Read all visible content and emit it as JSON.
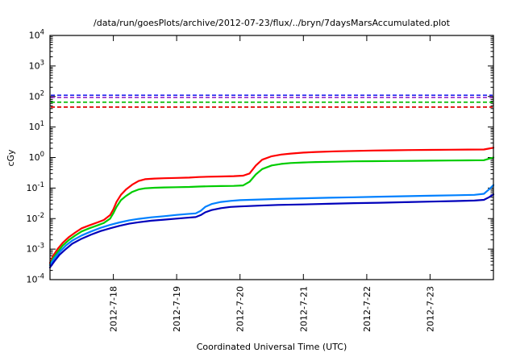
{
  "chart_data": {
    "type": "line",
    "title": "/data/run/goesPlots/archive/2012-07-23/flux/../bryn/7daysMarsAccumulated.plot",
    "xlabel": "Coordinated Universal Time (UTC)",
    "ylabel": "cGy",
    "axis_color": "#000000",
    "grid": false,
    "legend": "none",
    "y_axis": {
      "scale": "log",
      "min": 0.0001,
      "max": 10000,
      "tick_exponents": [
        4,
        3,
        2,
        1,
        0,
        -1,
        -2,
        -3,
        -4
      ]
    },
    "x_axis": {
      "range_days": [
        0,
        7
      ],
      "start_date": "2012-7-17",
      "ticks": [
        {
          "day": 1,
          "label": "2012-7-18"
        },
        {
          "day": 2,
          "label": "2012-7-19"
        },
        {
          "day": 3,
          "label": "2012-7-20"
        },
        {
          "day": 4,
          "label": "2012-7-21"
        },
        {
          "day": 5,
          "label": "2012-7-22"
        },
        {
          "day": 6,
          "label": "2012-7-23"
        }
      ]
    },
    "limit_lines": [
      {
        "name": "limit-blue",
        "color": "#2222ee",
        "value": 110,
        "style": "dashed"
      },
      {
        "name": "limit-purple",
        "color": "#9933cc",
        "value": 93,
        "style": "dashed"
      },
      {
        "name": "limit-green",
        "color": "#00bb00",
        "value": 65,
        "style": "dashed"
      },
      {
        "name": "limit-red",
        "color": "#dd0000",
        "value": 45,
        "style": "dashed"
      }
    ],
    "series": [
      {
        "name": "accumulated-dose-red",
        "color": "#ff0000",
        "points": [
          [
            0,
            0.00035
          ],
          [
            0.05,
            0.0006
          ],
          [
            0.12,
            0.001
          ],
          [
            0.2,
            0.0016
          ],
          [
            0.3,
            0.0025
          ],
          [
            0.4,
            0.0035
          ],
          [
            0.5,
            0.0048
          ],
          [
            0.62,
            0.006
          ],
          [
            0.75,
            0.0075
          ],
          [
            0.85,
            0.009
          ],
          [
            0.95,
            0.013
          ],
          [
            1.0,
            0.02
          ],
          [
            1.05,
            0.035
          ],
          [
            1.12,
            0.06
          ],
          [
            1.2,
            0.09
          ],
          [
            1.3,
            0.13
          ],
          [
            1.4,
            0.17
          ],
          [
            1.5,
            0.195
          ],
          [
            1.65,
            0.205
          ],
          [
            1.8,
            0.21
          ],
          [
            2.0,
            0.215
          ],
          [
            2.2,
            0.22
          ],
          [
            2.35,
            0.23
          ],
          [
            2.5,
            0.235
          ],
          [
            2.7,
            0.24
          ],
          [
            2.9,
            0.245
          ],
          [
            3.05,
            0.255
          ],
          [
            3.15,
            0.3
          ],
          [
            3.25,
            0.55
          ],
          [
            3.35,
            0.85
          ],
          [
            3.5,
            1.1
          ],
          [
            3.65,
            1.25
          ],
          [
            3.8,
            1.35
          ],
          [
            4.0,
            1.45
          ],
          [
            4.2,
            1.52
          ],
          [
            4.5,
            1.6
          ],
          [
            4.8,
            1.65
          ],
          [
            5.1,
            1.7
          ],
          [
            5.4,
            1.73
          ],
          [
            5.7,
            1.76
          ],
          [
            6.0,
            1.78
          ],
          [
            6.3,
            1.8
          ],
          [
            6.6,
            1.82
          ],
          [
            6.85,
            1.84
          ],
          [
            6.92,
            1.95
          ],
          [
            7,
            2.1
          ]
        ]
      },
      {
        "name": "accumulated-dose-green",
        "color": "#00cc00",
        "points": [
          [
            0,
            0.0003
          ],
          [
            0.05,
            0.0005
          ],
          [
            0.12,
            0.0008
          ],
          [
            0.2,
            0.0013
          ],
          [
            0.3,
            0.002
          ],
          [
            0.4,
            0.0028
          ],
          [
            0.5,
            0.0038
          ],
          [
            0.62,
            0.0048
          ],
          [
            0.75,
            0.006
          ],
          [
            0.85,
            0.0072
          ],
          [
            0.95,
            0.01
          ],
          [
            1.0,
            0.015
          ],
          [
            1.05,
            0.024
          ],
          [
            1.12,
            0.04
          ],
          [
            1.2,
            0.055
          ],
          [
            1.3,
            0.075
          ],
          [
            1.4,
            0.09
          ],
          [
            1.5,
            0.098
          ],
          [
            1.65,
            0.102
          ],
          [
            1.8,
            0.105
          ],
          [
            2.0,
            0.107
          ],
          [
            2.2,
            0.109
          ],
          [
            2.35,
            0.112
          ],
          [
            2.5,
            0.114
          ],
          [
            2.7,
            0.116
          ],
          [
            2.9,
            0.118
          ],
          [
            3.05,
            0.122
          ],
          [
            3.15,
            0.16
          ],
          [
            3.25,
            0.28
          ],
          [
            3.35,
            0.42
          ],
          [
            3.5,
            0.55
          ],
          [
            3.65,
            0.62
          ],
          [
            3.8,
            0.66
          ],
          [
            4.0,
            0.69
          ],
          [
            4.2,
            0.71
          ],
          [
            4.5,
            0.73
          ],
          [
            4.8,
            0.75
          ],
          [
            5.1,
            0.76
          ],
          [
            5.4,
            0.77
          ],
          [
            5.7,
            0.78
          ],
          [
            6.0,
            0.79
          ],
          [
            6.3,
            0.8
          ],
          [
            6.6,
            0.81
          ],
          [
            6.85,
            0.82
          ],
          [
            6.92,
            0.9
          ],
          [
            7,
            1.0
          ]
        ]
      },
      {
        "name": "accumulated-dose-lightblue",
        "color": "#0080ff",
        "points": [
          [
            0,
            0.0003
          ],
          [
            0.07,
            0.0005
          ],
          [
            0.15,
            0.0008
          ],
          [
            0.25,
            0.0013
          ],
          [
            0.35,
            0.0019
          ],
          [
            0.5,
            0.0028
          ],
          [
            0.65,
            0.0038
          ],
          [
            0.8,
            0.005
          ],
          [
            0.95,
            0.0062
          ],
          [
            1.1,
            0.0075
          ],
          [
            1.25,
            0.0088
          ],
          [
            1.4,
            0.0098
          ],
          [
            1.6,
            0.011
          ],
          [
            1.8,
            0.012
          ],
          [
            2.0,
            0.0132
          ],
          [
            2.15,
            0.014
          ],
          [
            2.3,
            0.0148
          ],
          [
            2.38,
            0.018
          ],
          [
            2.45,
            0.024
          ],
          [
            2.55,
            0.03
          ],
          [
            2.7,
            0.035
          ],
          [
            2.85,
            0.038
          ],
          [
            3.0,
            0.04
          ],
          [
            3.3,
            0.042
          ],
          [
            3.6,
            0.044
          ],
          [
            4.0,
            0.046
          ],
          [
            4.4,
            0.048
          ],
          [
            4.8,
            0.05
          ],
          [
            5.2,
            0.052
          ],
          [
            5.6,
            0.054
          ],
          [
            6.0,
            0.056
          ],
          [
            6.4,
            0.058
          ],
          [
            6.7,
            0.06
          ],
          [
            6.85,
            0.065
          ],
          [
            6.93,
            0.09
          ],
          [
            7,
            0.125
          ]
        ]
      },
      {
        "name": "accumulated-dose-darkblue",
        "color": "#0000bb",
        "points": [
          [
            0,
            0.00025
          ],
          [
            0.07,
            0.0004
          ],
          [
            0.15,
            0.00065
          ],
          [
            0.25,
            0.001
          ],
          [
            0.35,
            0.0015
          ],
          [
            0.5,
            0.0022
          ],
          [
            0.65,
            0.003
          ],
          [
            0.8,
            0.0039
          ],
          [
            0.95,
            0.0048
          ],
          [
            1.1,
            0.0058
          ],
          [
            1.25,
            0.0068
          ],
          [
            1.4,
            0.0076
          ],
          [
            1.6,
            0.0085
          ],
          [
            1.8,
            0.0092
          ],
          [
            2.0,
            0.01
          ],
          [
            2.15,
            0.0106
          ],
          [
            2.3,
            0.0112
          ],
          [
            2.38,
            0.013
          ],
          [
            2.45,
            0.016
          ],
          [
            2.55,
            0.019
          ],
          [
            2.7,
            0.022
          ],
          [
            2.85,
            0.024
          ],
          [
            3.0,
            0.025
          ],
          [
            3.3,
            0.0265
          ],
          [
            3.6,
            0.028
          ],
          [
            4.0,
            0.029
          ],
          [
            4.4,
            0.0305
          ],
          [
            4.8,
            0.032
          ],
          [
            5.2,
            0.033
          ],
          [
            5.6,
            0.0345
          ],
          [
            6.0,
            0.036
          ],
          [
            6.4,
            0.0375
          ],
          [
            6.7,
            0.039
          ],
          [
            6.85,
            0.041
          ],
          [
            6.93,
            0.05
          ],
          [
            7,
            0.062
          ]
        ]
      }
    ]
  }
}
